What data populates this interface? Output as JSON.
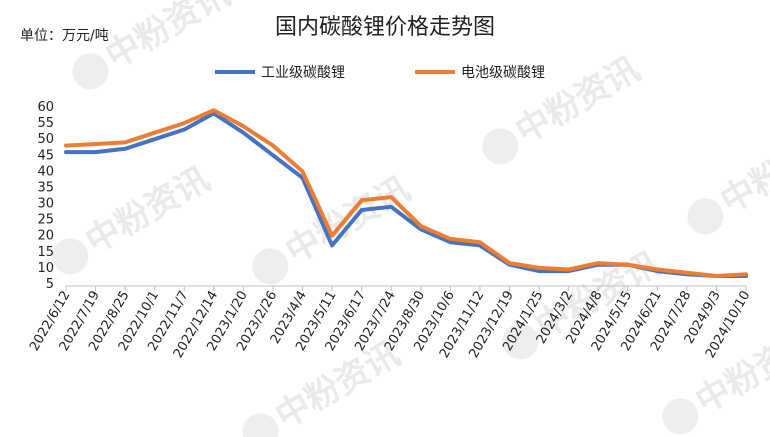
{
  "chart_data": {
    "type": "line",
    "title": "国内碳酸锂价格走势图",
    "unit_label": "单位：万元/吨",
    "yticks": [
      5,
      10,
      15,
      20,
      25,
      30,
      35,
      40,
      45,
      50,
      55,
      60
    ],
    "ylim": [
      5,
      60
    ],
    "x": [
      "2022/6/12",
      "2022/7/19",
      "2022/8/25",
      "2022/10/1",
      "2022/11/7",
      "2022/12/14",
      "2023/1/20",
      "2023/2/26",
      "2023/4/4",
      "2023/5/11",
      "2023/6/17",
      "2023/7/24",
      "2023/8/30",
      "2023/10/6",
      "2023/11/12",
      "2023/12/19",
      "2024/1/25",
      "2024/3/2",
      "2024/4/8",
      "2024/5/15",
      "2024/6/21",
      "2024/7/28",
      "2024/9/3",
      "2024/10/10"
    ],
    "legend_position": "top",
    "series": [
      {
        "name": "工业级碳酸锂",
        "color": "#4472c4",
        "values": [
          46,
          46,
          47,
          50,
          53,
          58,
          52,
          45,
          38,
          17,
          28,
          29,
          22,
          18,
          17,
          11,
          9,
          9,
          11,
          11,
          9,
          8,
          7.5,
          7.5
        ]
      },
      {
        "name": "电池级碳酸锂",
        "color": "#ed7d31",
        "values": [
          48,
          48.5,
          49,
          52,
          55,
          59,
          54,
          48,
          40,
          20,
          31,
          32,
          23,
          19,
          18,
          11.5,
          10,
          9.5,
          11.5,
          11,
          9.5,
          8.5,
          7.5,
          8
        ]
      }
    ]
  },
  "watermark": "中粉资讯"
}
